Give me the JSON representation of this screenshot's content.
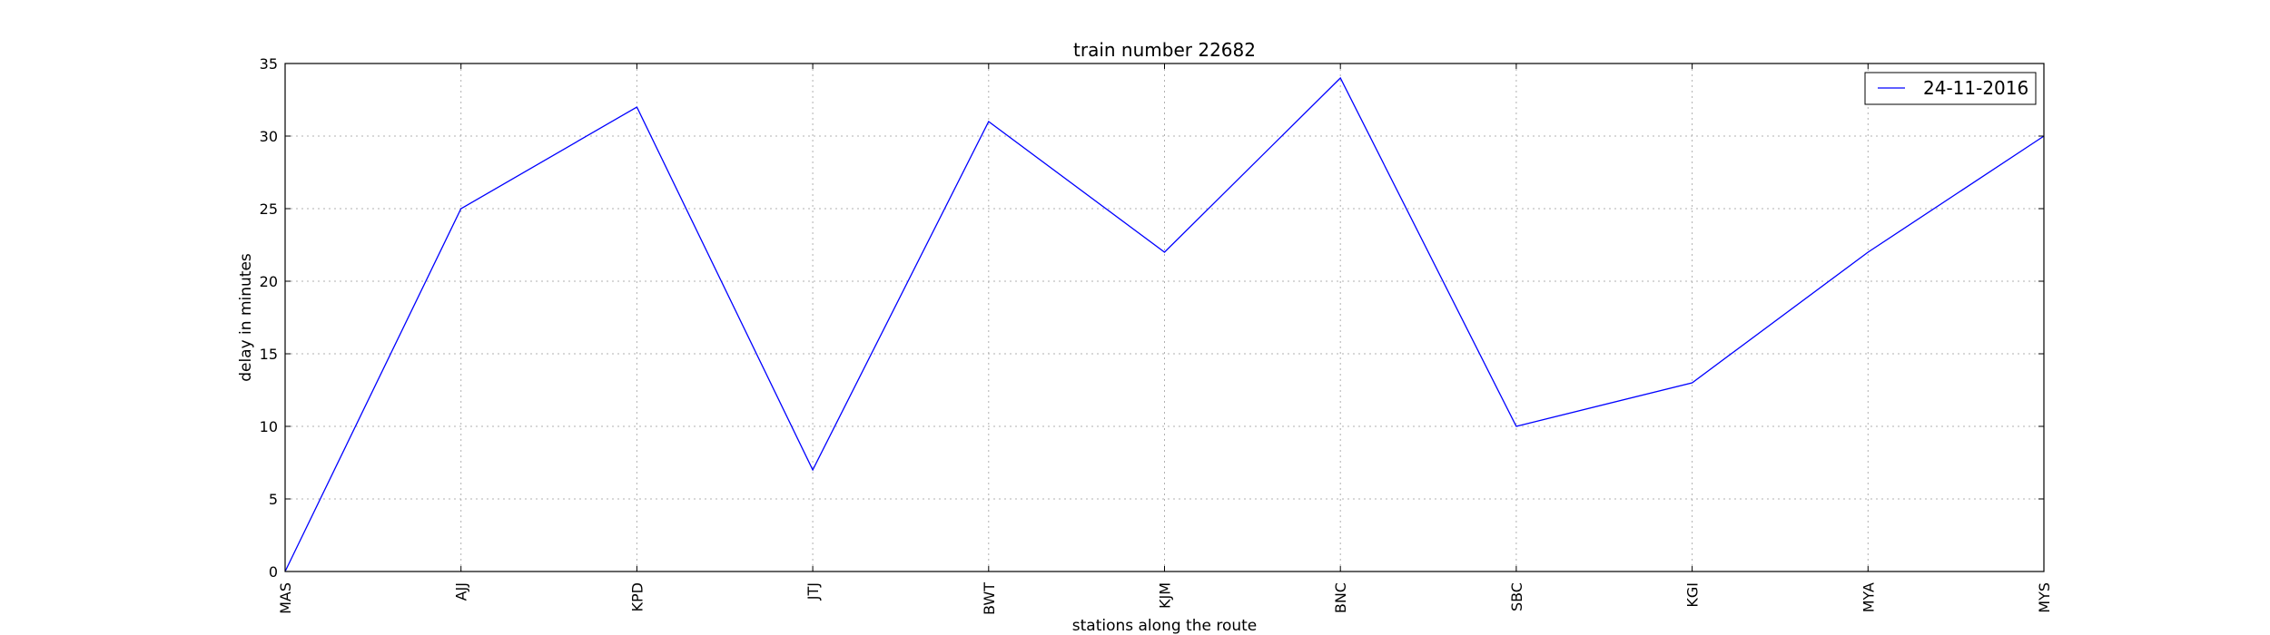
{
  "chart_data": {
    "type": "line",
    "title": "train number 22682",
    "xlabel": "stations along the route",
    "ylabel": "delay in minutes",
    "categories": [
      "MAS",
      "AJJ",
      "KPD",
      "JTJ",
      "BWT",
      "KJM",
      "BNC",
      "SBC",
      "KGI",
      "MYA",
      "MYS"
    ],
    "series": [
      {
        "name": "24-11-2016",
        "color": "#0000ff",
        "values": [
          0,
          25,
          32,
          7,
          31,
          22,
          34,
          10,
          13,
          22,
          30
        ]
      }
    ],
    "ylim": [
      0,
      35
    ],
    "yticks": [
      0,
      5,
      10,
      15,
      20,
      25,
      30,
      35
    ],
    "grid": true,
    "legend_position": "top-right"
  }
}
